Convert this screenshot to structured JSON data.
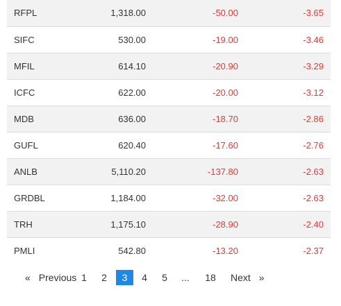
{
  "rows": [
    {
      "symbol": "RFPL",
      "ltp": "1,318.00",
      "change": "-50.00",
      "pct": "-3.65"
    },
    {
      "symbol": "SIFC",
      "ltp": "530.00",
      "change": "-19.00",
      "pct": "-3.46"
    },
    {
      "symbol": "MFIL",
      "ltp": "614.10",
      "change": "-20.90",
      "pct": "-3.29"
    },
    {
      "symbol": "ICFC",
      "ltp": "622.00",
      "change": "-20.00",
      "pct": "-3.12"
    },
    {
      "symbol": "MDB",
      "ltp": "636.00",
      "change": "-18.70",
      "pct": "-2.86"
    },
    {
      "symbol": "GUFL",
      "ltp": "620.40",
      "change": "-17.60",
      "pct": "-2.76"
    },
    {
      "symbol": "ANLB",
      "ltp": "5,110.20",
      "change": "-137.80",
      "pct": "-2.63"
    },
    {
      "symbol": "GRDBL",
      "ltp": "1,184.00",
      "change": "-32.00",
      "pct": "-2.63"
    },
    {
      "symbol": "TRH",
      "ltp": "1,175.10",
      "change": "-28.90",
      "pct": "-2.40"
    },
    {
      "symbol": "PMLI",
      "ltp": "542.80",
      "change": "-13.20",
      "pct": "-2.37"
    }
  ],
  "pagination": {
    "prev_arrow": "«",
    "prev_label": "Previous",
    "pages": [
      "1",
      "2",
      "3",
      "4",
      "5",
      "...",
      "18"
    ],
    "active_page": "3",
    "next_label": "Next",
    "next_arrow": "»"
  },
  "colors": {
    "negative": "#e53935",
    "active_page_bg": "#1e88e5",
    "stripe": "#f2f2f2"
  }
}
